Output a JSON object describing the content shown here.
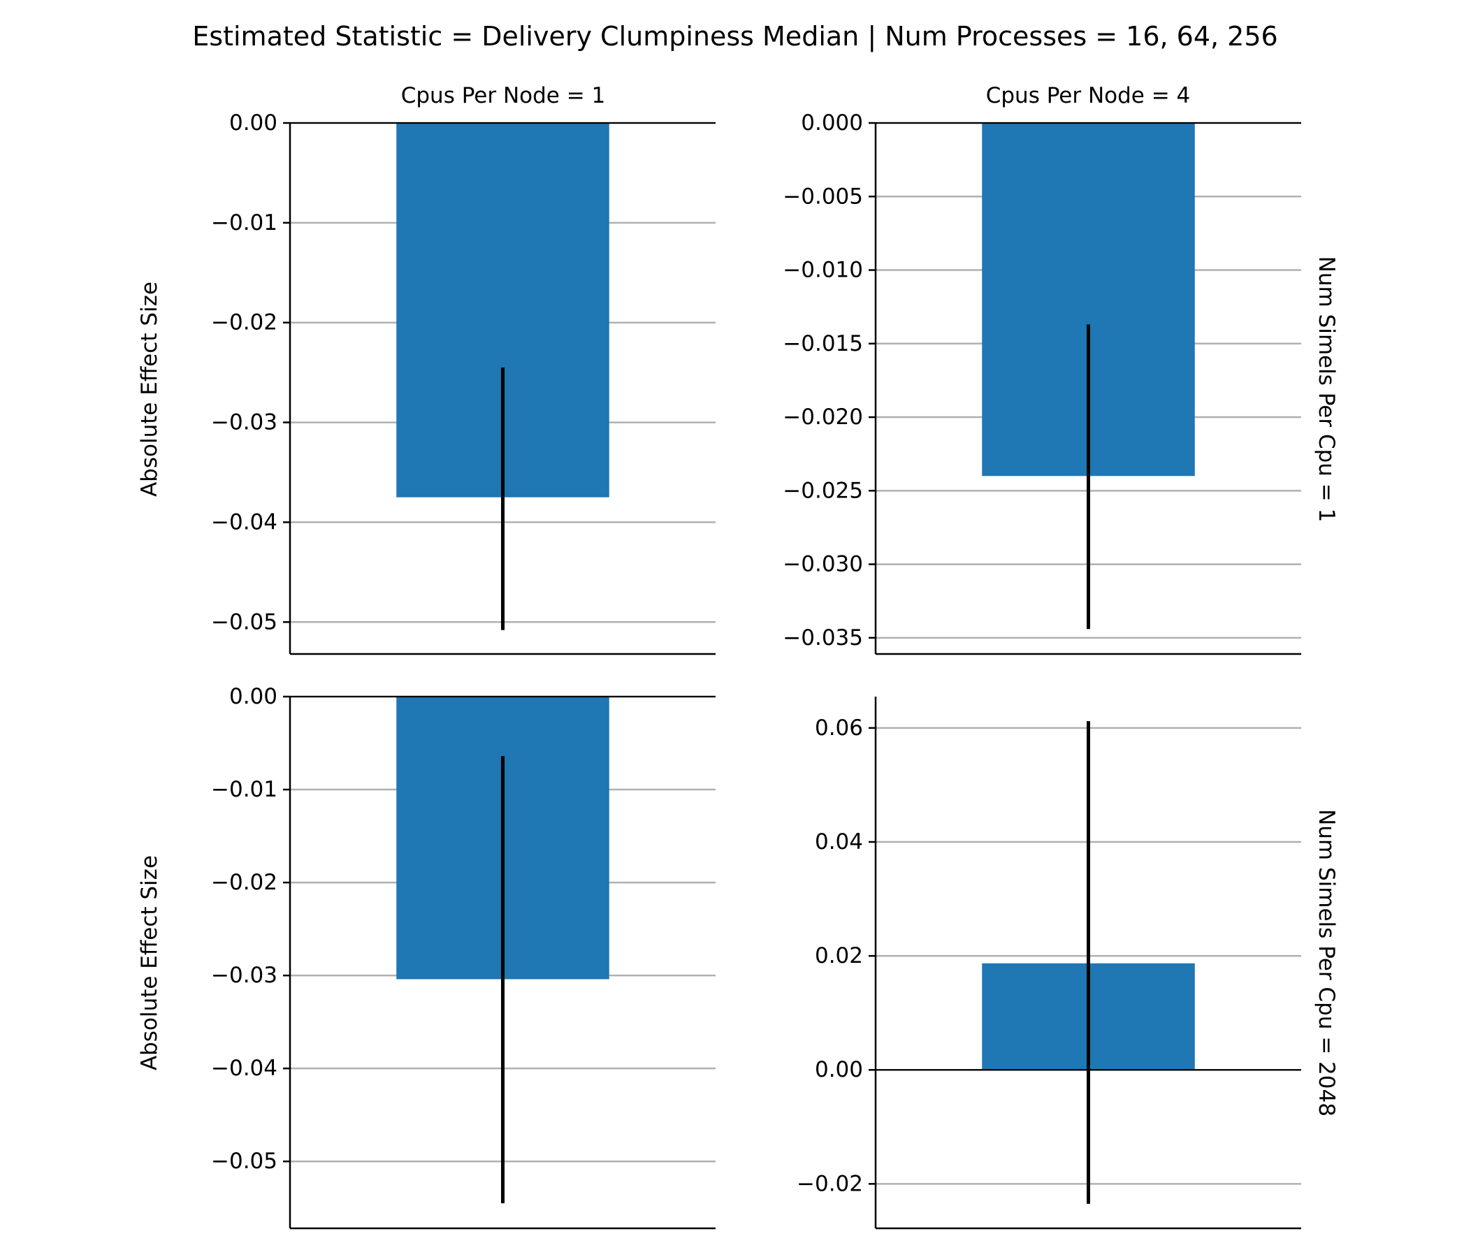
{
  "figure": {
    "title": "Estimated Statistic = Delivery Clumpiness Median | Num Processes = 16, 64, 256"
  },
  "colors": {
    "bar": "#1f77b4",
    "error_bar": "#000000",
    "grid": "#b0b0b0",
    "axis": "#000000"
  },
  "chart_data": [
    {
      "type": "bar",
      "panel": "top-left",
      "col_title": "Cpus Per Node = 1",
      "row_label": "",
      "ylabel": "Absolute Effect Size",
      "ylim": [
        -0.0532,
        0.0
      ],
      "yticks": [
        0.0,
        -0.01,
        -0.02,
        -0.03,
        -0.04,
        -0.05
      ],
      "ytick_labels": [
        "0.00",
        "−0.01",
        "−0.02",
        "−0.03",
        "−0.04",
        "−0.05"
      ],
      "grid": "y",
      "value": -0.0375,
      "error_low": -0.0508,
      "error_high": -0.0245
    },
    {
      "type": "bar",
      "panel": "top-right",
      "col_title": "Cpus Per Node = 4",
      "row_label": "Num Simels Per Cpu = 1",
      "ylabel": "",
      "ylim": [
        -0.0361,
        0.0
      ],
      "yticks": [
        0.0,
        -0.005,
        -0.01,
        -0.015,
        -0.02,
        -0.025,
        -0.03,
        -0.035
      ],
      "ytick_labels": [
        "0.000",
        "−0.005",
        "−0.010",
        "−0.015",
        "−0.020",
        "−0.025",
        "−0.030",
        "−0.035"
      ],
      "grid": "y",
      "value": -0.024,
      "error_low": -0.0344,
      "error_high": -0.0137
    },
    {
      "type": "bar",
      "panel": "bottom-left",
      "col_title": "",
      "row_label": "",
      "ylabel": "Absolute Effect Size",
      "ylim": [
        -0.0572,
        0.0
      ],
      "yticks": [
        0.0,
        -0.01,
        -0.02,
        -0.03,
        -0.04,
        -0.05
      ],
      "ytick_labels": [
        "0.00",
        "−0.01",
        "−0.02",
        "−0.03",
        "−0.04",
        "−0.05"
      ],
      "grid": "y",
      "value": -0.0304,
      "error_low": -0.0545,
      "error_high": -0.0064
    },
    {
      "type": "bar",
      "panel": "bottom-right",
      "col_title": "",
      "row_label": "Num Simels Per Cpu = 2048",
      "ylabel": "",
      "ylim": [
        -0.0278,
        0.0655
      ],
      "yticks": [
        0.06,
        0.04,
        0.02,
        0.0,
        -0.02
      ],
      "ytick_labels": [
        "0.06",
        "0.04",
        "0.02",
        "0.00",
        "−0.02"
      ],
      "grid": "y",
      "value": 0.0187,
      "error_low": -0.0235,
      "error_high": 0.0612
    }
  ]
}
